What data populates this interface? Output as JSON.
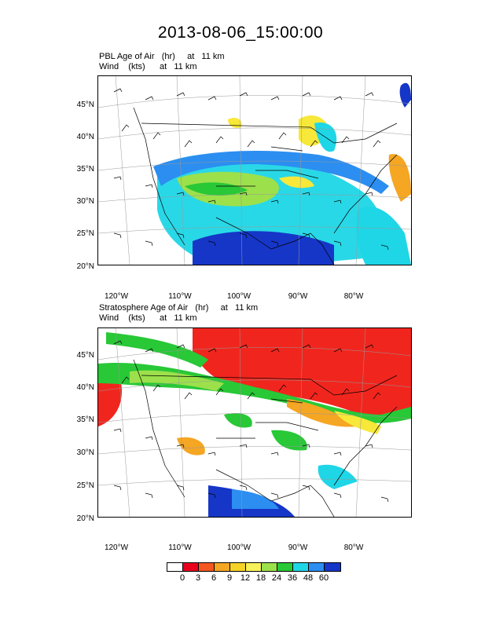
{
  "title": "2013-08-06_15:00:00",
  "panels": [
    {
      "line1": "PBL Age of Air   (hr)     at   11 km",
      "line2": "Wind    (kts)      at   11 km",
      "lat_ticks": [
        "45°N",
        "40°N",
        "35°N",
        "30°N",
        "25°N",
        "20°N"
      ],
      "lon_ticks": [
        "120°W",
        "110°W",
        "100°W",
        "90°W",
        "80°W"
      ]
    },
    {
      "line1": "Stratosphere Age of Air   (hr)     at   11 km",
      "line2": "Wind    (kts)      at   11 km",
      "lat_ticks": [
        "45°N",
        "40°N",
        "35°N",
        "30°N",
        "25°N",
        "20°N"
      ],
      "lon_ticks": [
        "120°W",
        "110°W",
        "100°W",
        "90°W",
        "80°W"
      ]
    }
  ],
  "colorbar": {
    "labels": [
      "0",
      "3",
      "6",
      "9",
      "12",
      "18",
      "24",
      "36",
      "48",
      "60"
    ],
    "colors": [
      "#ffffff",
      "#e8001c",
      "#f4571f",
      "#f5a623",
      "#f5d327",
      "#f7f25a",
      "#9ce04b",
      "#28c837",
      "#1ed6e6",
      "#2c8ef0",
      "#1636c8",
      "#0c1190"
    ]
  },
  "colors": {
    "red": "#f0261e",
    "orange": "#f5a623",
    "yellow": "#f7e83a",
    "lightgreen": "#9ce04b",
    "green": "#28c837",
    "cyan": "#1ed6e6",
    "blue": "#2c8ef0",
    "darkblue": "#1636c8"
  }
}
